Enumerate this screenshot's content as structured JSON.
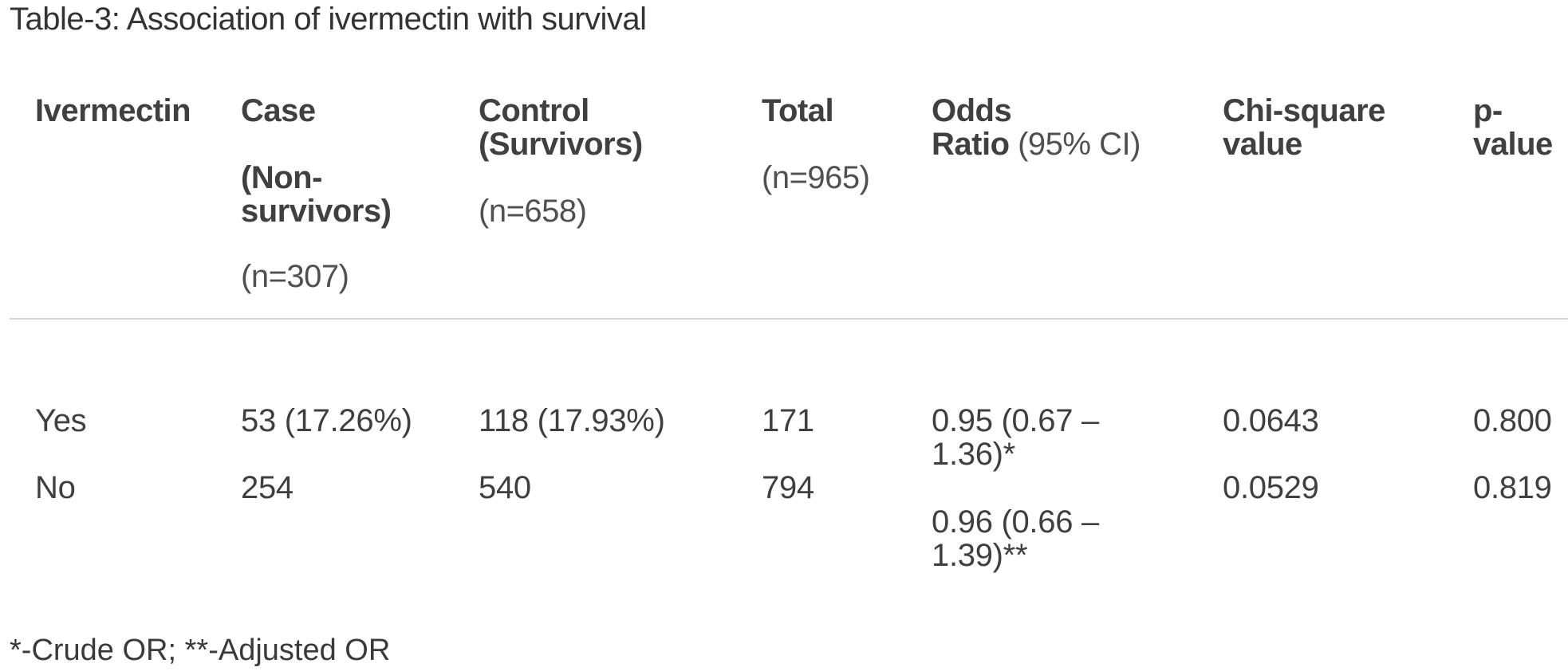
{
  "title": "Table-3: Association of ivermectin with survival",
  "headers": {
    "ivermectin": "Ivermectin",
    "case_l1": "Case",
    "case_l2": "(Non-",
    "case_l3": "survivors)",
    "case_n": "(n=307)",
    "control_l1": "Control",
    "control_l2": "(Survivors)",
    "control_n": "(n=658)",
    "total": "Total",
    "total_n": "(n=965)",
    "odds_l1": "Odds",
    "odds_l2": "Ratio",
    "odds_ci": " (95% CI)",
    "chi_l1": "Chi-square",
    "chi_l2": "value",
    "p_l1": "p-",
    "p_l2": "value"
  },
  "rows": [
    {
      "ivermectin": "Yes",
      "case": "53 (17.26%)",
      "control": "118 (17.93%)",
      "total": "171",
      "or_l1": "0.95 (0.67 –",
      "or_l2": "1.36)*",
      "chi": "0.0643",
      "p": "0.800"
    },
    {
      "ivermectin": "No",
      "case": "254",
      "control": "540",
      "total": "794",
      "or_l1": "0.96 (0.66 –",
      "or_l2": "1.39)**",
      "chi": "0.0529",
      "p": "0.819"
    }
  ],
  "footnote": "*-Crude OR; **-Adjusted OR"
}
